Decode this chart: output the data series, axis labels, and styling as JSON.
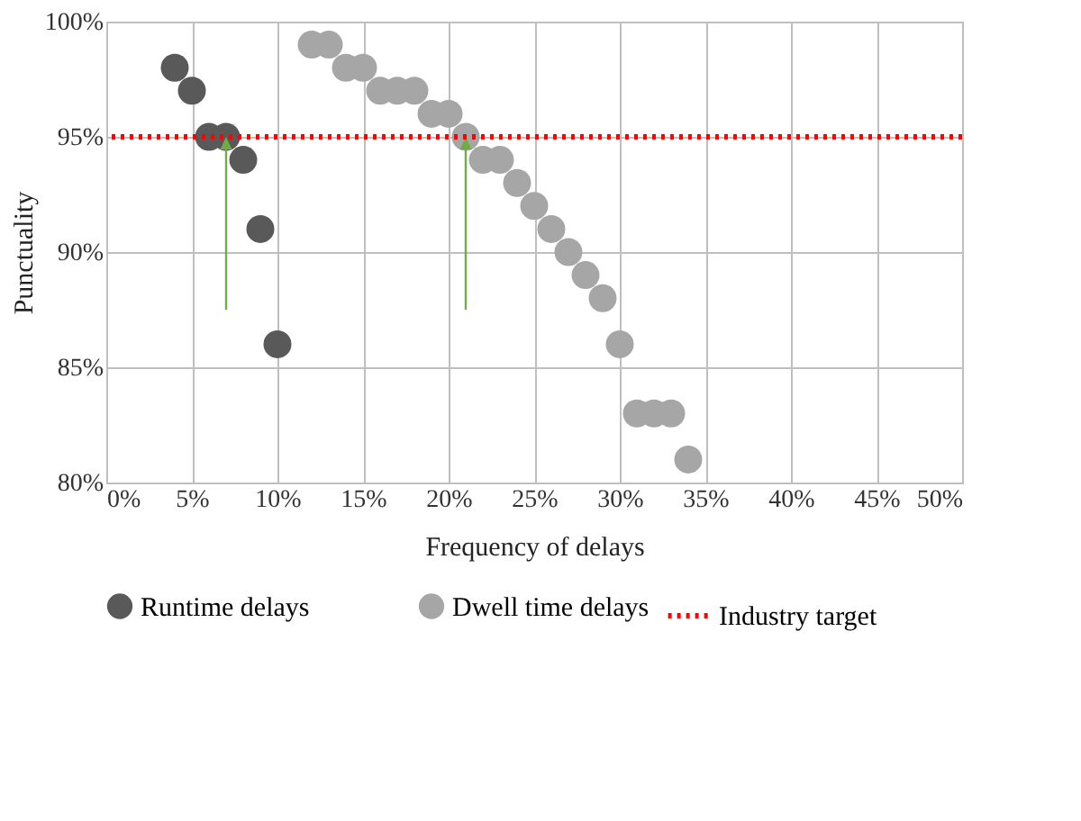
{
  "chart_data": {
    "type": "scatter",
    "xlabel": "Frequency of delays",
    "ylabel": "Punctuality",
    "xlim": [
      0,
      50
    ],
    "ylim": [
      80,
      100
    ],
    "xticks": [
      {
        "value": 0,
        "label": "0%"
      },
      {
        "value": 5,
        "label": "5%"
      },
      {
        "value": 10,
        "label": "10%"
      },
      {
        "value": 15,
        "label": "15%"
      },
      {
        "value": 20,
        "label": "20%"
      },
      {
        "value": 25,
        "label": "25%"
      },
      {
        "value": 30,
        "label": "30%"
      },
      {
        "value": 35,
        "label": "35%"
      },
      {
        "value": 40,
        "label": "40%"
      },
      {
        "value": 45,
        "label": "45%"
      },
      {
        "value": 50,
        "label": "50%"
      }
    ],
    "yticks": [
      {
        "value": 80,
        "label": "80%"
      },
      {
        "value": 85,
        "label": "85%"
      },
      {
        "value": 90,
        "label": "90%"
      },
      {
        "value": 95,
        "label": "95%"
      },
      {
        "value": 100,
        "label": "100%"
      }
    ],
    "series": [
      {
        "name": "Runtime delays",
        "color": "#595959",
        "x": [
          4,
          5,
          6,
          7,
          8,
          9,
          10
        ],
        "values": [
          98,
          97,
          95,
          95,
          94,
          91,
          86
        ]
      },
      {
        "name": "Dwell time delays",
        "color": "#a6a6a6",
        "x": [
          12,
          13,
          14,
          15,
          16,
          17,
          18,
          19,
          20,
          21,
          22,
          23,
          24,
          25,
          26,
          27,
          28,
          29,
          30,
          31,
          32,
          33,
          34
        ],
        "values": [
          99,
          99,
          98,
          98,
          97,
          97,
          97,
          96,
          96,
          95,
          94,
          94,
          93,
          92,
          91,
          90,
          89,
          88,
          86,
          83,
          83,
          83,
          81
        ]
      }
    ],
    "ref_lines": [
      {
        "axis": "y",
        "value": 95,
        "label": "Industry target",
        "color": "#ff0000",
        "line_style": "dotted"
      }
    ],
    "marker": "circle",
    "grid": true,
    "legend": "bottom"
  }
}
